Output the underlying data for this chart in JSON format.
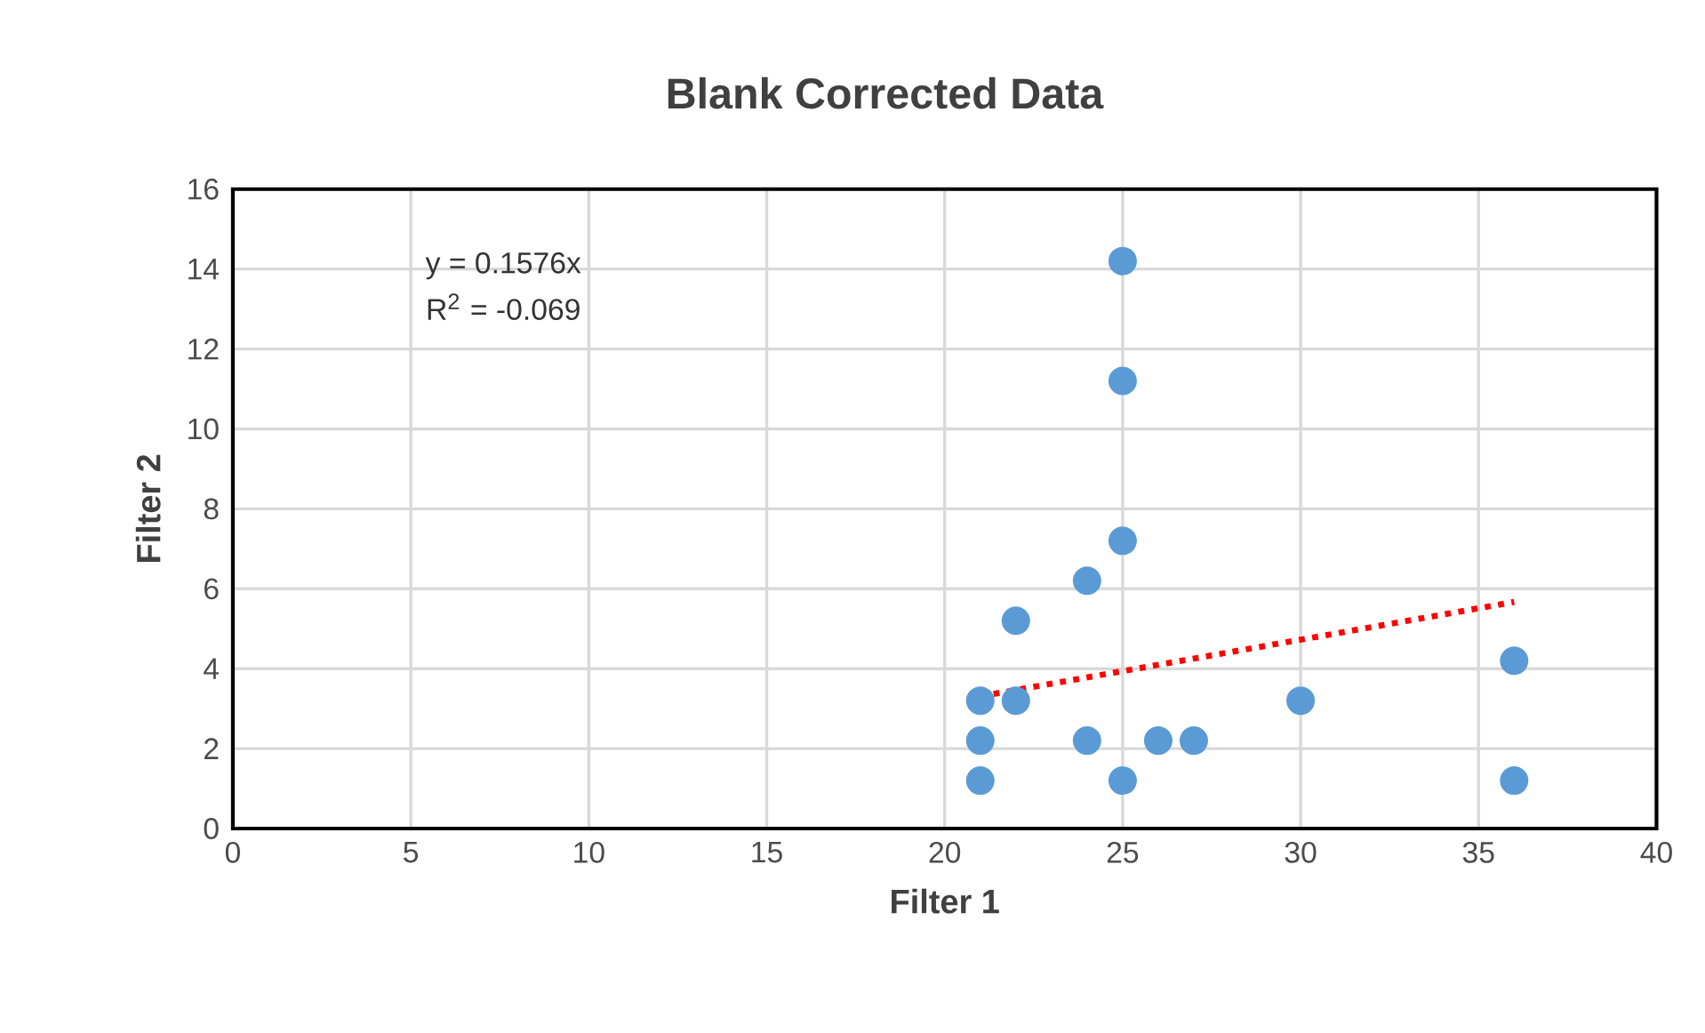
{
  "chart_data": {
    "type": "scatter",
    "title": "Blank Corrected Data",
    "xlabel": "Filter 1",
    "ylabel": "Filter 2",
    "annotations": [
      "y = 0.1576x",
      "R$^{2}$ = -0.069"
    ],
    "xlim": [
      0,
      40
    ],
    "xticks": [
      0,
      5,
      10,
      15,
      20,
      25,
      30,
      35,
      40
    ],
    "ylim": [
      0,
      16
    ],
    "yticks": [
      0,
      2,
      4,
      6,
      8,
      10,
      12,
      14,
      16
    ],
    "grid": true,
    "series": [
      {
        "color": "#5b9bd5",
        "marker": "circle",
        "x": [
          21,
          21,
          21,
          22,
          22,
          24,
          24,
          25,
          25,
          25,
          25,
          26,
          27,
          30,
          36,
          36
        ],
        "values": [
          3.2,
          2.2,
          1.2,
          5.2,
          3.2,
          6.2,
          2.2,
          14.2,
          11.2,
          7.2,
          1.2,
          2.2,
          2.2,
          3.2,
          4.2,
          1.2
        ]
      },
      {
        "type": "line",
        "color": "#ff0000",
        "marker": "none",
        "line_style": "dotted",
        "x": [
          21,
          36
        ],
        "values": [
          3.31,
          5.67
        ]
      }
    ]
  }
}
